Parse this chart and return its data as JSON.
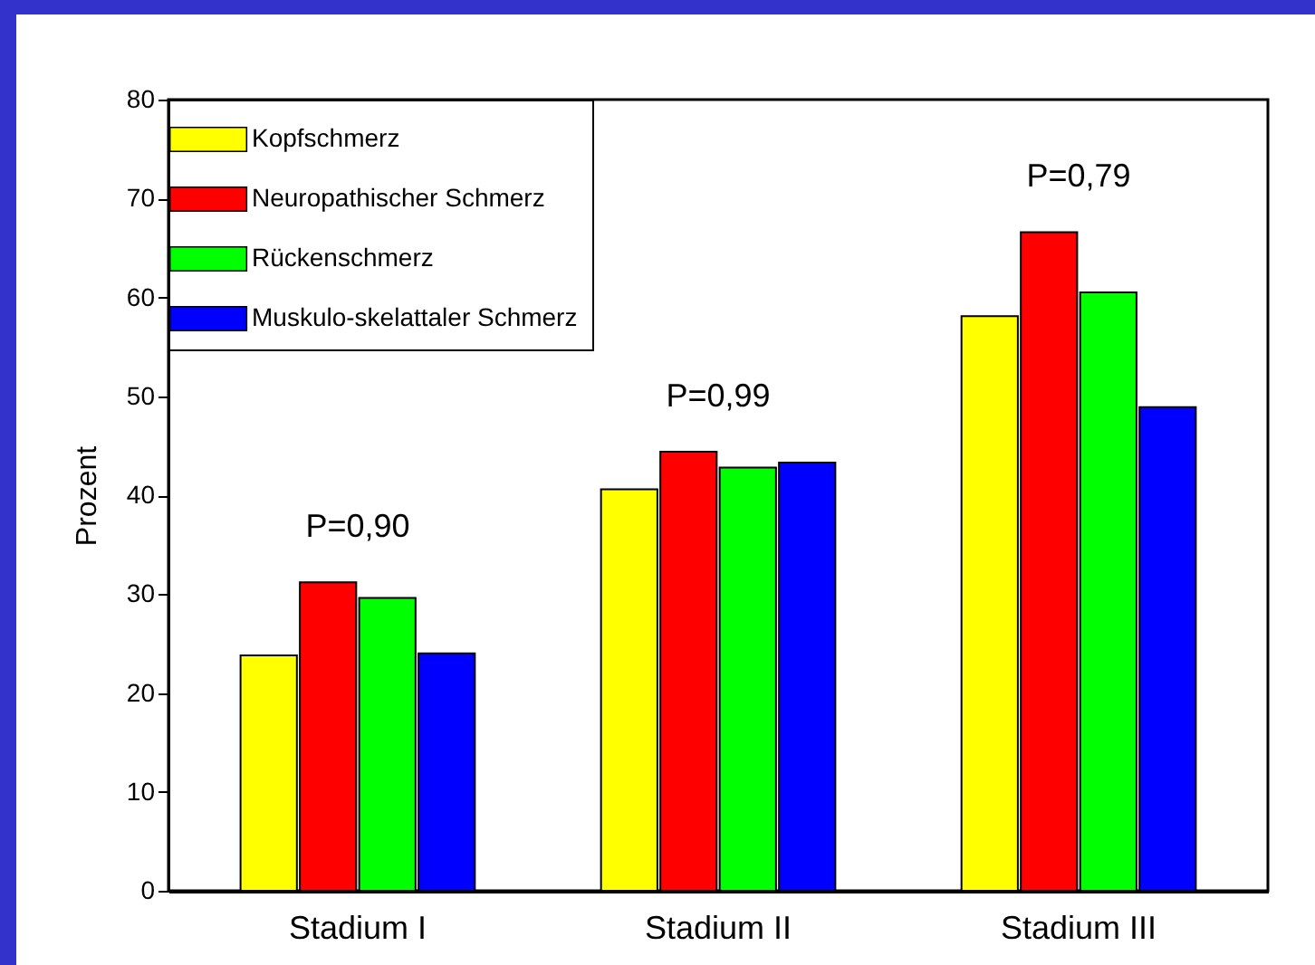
{
  "chart_data": {
    "type": "bar",
    "ylabel": "Prozent",
    "categories": [
      "Stadium I",
      "Stadium II",
      "Stadium III"
    ],
    "series": [
      {
        "name": "Kopfschmerz",
        "color": "#ffff00",
        "values": [
          23.8,
          40.6,
          58.1
        ]
      },
      {
        "name": "Neuropathischer Schmerz",
        "color": "#ff0000",
        "values": [
          31.2,
          44.4,
          66.6
        ]
      },
      {
        "name": "Rückenschmerz",
        "color": "#00ff00",
        "values": [
          29.6,
          42.8,
          60.5
        ]
      },
      {
        "name": "Muskulo-skelattaler Schmerz",
        "color": "#0000ff",
        "values": [
          24.0,
          43.3,
          48.9
        ]
      }
    ],
    "ylim": [
      0,
      80
    ],
    "yticks": [
      0,
      10,
      20,
      30,
      40,
      50,
      60,
      70,
      80
    ],
    "annotations": [
      "P=0,90",
      "P=0,99",
      "P=0,79"
    ],
    "grid": false,
    "legend": "top left"
  }
}
